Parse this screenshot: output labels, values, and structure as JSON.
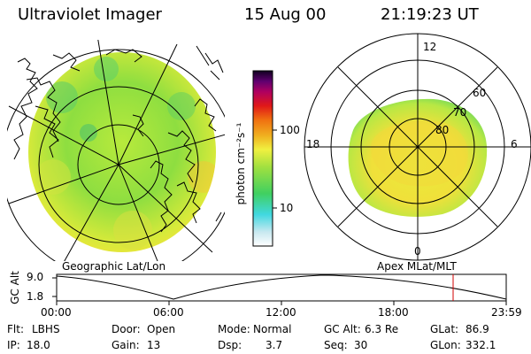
{
  "header": {
    "title": "Ultraviolet Imager",
    "date": "15 Aug 00",
    "time": "21:19:23 UT"
  },
  "colorbar": {
    "unit_label": "photon cm⁻²s⁻¹",
    "ticks": [
      "100",
      "10"
    ]
  },
  "left_panel": {
    "caption": "Geographic Lat/Lon"
  },
  "right_panel": {
    "caption": "Apex MLat/MLT",
    "clock_labels": {
      "top": "12",
      "left": "18",
      "right": "6",
      "bottom": "0"
    },
    "lat_labels": [
      "60",
      "70",
      "80"
    ]
  },
  "altitude_plot": {
    "ylabel": "GC Alt",
    "yticks": [
      "9.0",
      "1.8"
    ],
    "xticks": [
      "00:00",
      "06:00",
      "12:00",
      "18:00",
      "23:59"
    ],
    "marker_color": "#d00000"
  },
  "info": {
    "row1": [
      {
        "label": "Flt:",
        "value": "LBHS"
      },
      {
        "label": "Door:",
        "value": "Open"
      },
      {
        "label": "Mode:",
        "value": "Normal"
      },
      {
        "label": "GC Alt:",
        "value": "6.3 Re"
      },
      {
        "label": "GLat:",
        "value": "86.9"
      }
    ],
    "row2": [
      {
        "label": "IP:",
        "value": "18.0"
      },
      {
        "label": "Gain:",
        "value": "13"
      },
      {
        "label": "Dsp:",
        "value": "3.7"
      },
      {
        "label": "Seq:",
        "value": "30"
      },
      {
        "label": "GLon:",
        "value": "332.1"
      }
    ]
  }
}
